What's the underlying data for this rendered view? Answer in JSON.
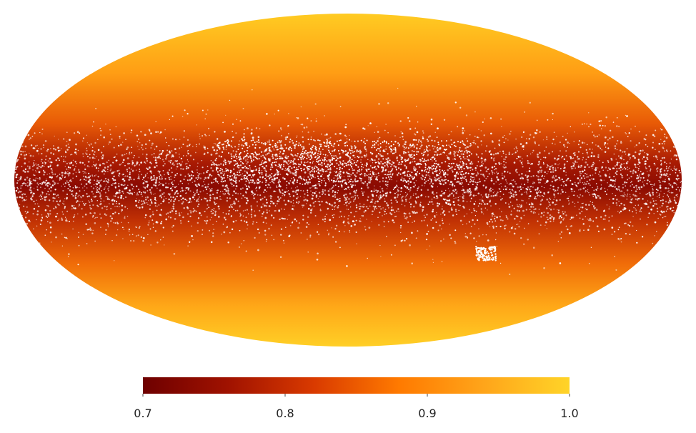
{
  "colorbar": {
    "lim": [
      0.7,
      1.0
    ],
    "ticks": [
      0.7,
      0.8,
      0.9,
      {
        "value": 1,
        "label": "1.0"
      }
    ],
    "colors": [
      "#6e0000",
      "#a01200",
      "#d93a00",
      "#ff7a00",
      "#ffa51a",
      "#ffd428"
    ]
  }
}
